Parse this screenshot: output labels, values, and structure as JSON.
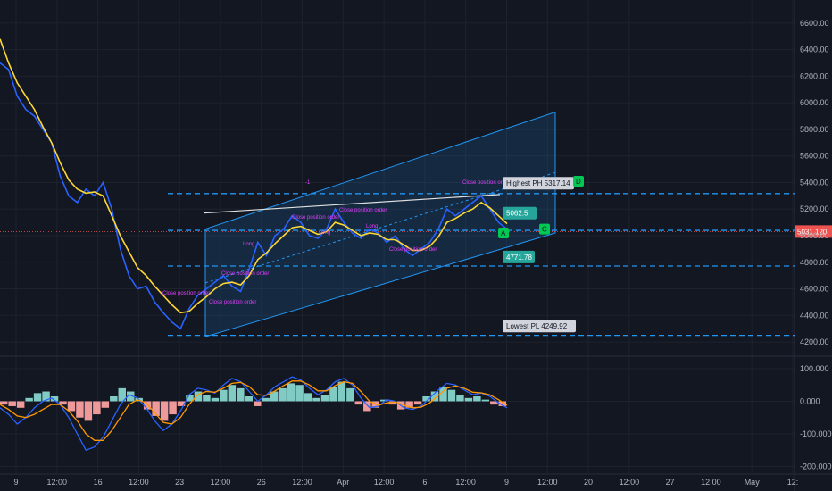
{
  "chart_data": [
    {
      "type": "line",
      "title": "",
      "y_ticks": [
        4200,
        4400,
        4600,
        4800,
        5000,
        5200,
        5400,
        5600,
        5800,
        6000,
        6200,
        6400,
        6600
      ],
      "y_tick_labels": [
        "4200.00",
        "4400.00",
        "4600.00",
        "4800.00",
        "5000.00",
        "5200.00",
        "5400.00",
        "5600.00",
        "5800.00",
        "6000.00",
        "6200.00",
        "6400.00",
        "6600.00"
      ],
      "x_tick_labels": [
        "9",
        "12:00",
        "16",
        "12:00",
        "23",
        "12:00",
        "26",
        "12:00",
        "Apr",
        "12:00",
        "6",
        "12:00",
        "9",
        "12:00",
        "20",
        "12:00",
        "27",
        "12:00",
        "May",
        "12:"
      ],
      "ylim": [
        4120,
        6720
      ],
      "last_price": "5031.120",
      "price_series": [
        6300,
        6250,
        6050,
        5950,
        5900,
        5800,
        5700,
        5450,
        5300,
        5250,
        5350,
        5300,
        5400,
        5200,
        4900,
        4700,
        4600,
        4620,
        4500,
        4420,
        4350,
        4300,
        4450,
        4550,
        4600,
        4650,
        4700,
        4620,
        4580,
        4750,
        4950,
        4850,
        5000,
        5050,
        5150,
        5100,
        5000,
        4980,
        5050,
        5200,
        5100,
        5020,
        4980,
        5050,
        5020,
        4950,
        5000,
        4900,
        4850,
        4900,
        4950,
        5050,
        5200,
        5150,
        5200,
        5250,
        5300,
        5200,
        5100,
        5050
      ],
      "ma_series": [
        6480,
        6300,
        6150,
        6050,
        5950,
        5820,
        5700,
        5550,
        5420,
        5350,
        5320,
        5330,
        5300,
        5150,
        5000,
        4880,
        4760,
        4700,
        4620,
        4550,
        4480,
        4420,
        4430,
        4490,
        4540,
        4600,
        4640,
        4650,
        4630,
        4700,
        4820,
        4870,
        4940,
        5000,
        5060,
        5070,
        5040,
        5010,
        5030,
        5100,
        5080,
        5040,
        5000,
        5020,
        5010,
        4970,
        4970,
        4930,
        4890,
        4890,
        4920,
        4990,
        5100,
        5130,
        5170,
        5200,
        5250,
        5210,
        5150,
        5090
      ],
      "lines": {
        "highest_ph": "Highest PH 5317.14",
        "lowest_pl": "Lowest PL 4249.92",
        "level_4771": "4771.78",
        "level_5062": "5062.5"
      },
      "levels": {
        "high": 5317.14,
        "low": 4249.92,
        "mid": 4771.78,
        "level2": 5062.5
      },
      "annotations": [
        "Close position order",
        "Close position order",
        "Close position order",
        "Close position order",
        "Close position order",
        "Close position order",
        "Close position order",
        "Long",
        "Long",
        "Long",
        "-1"
      ],
      "pattern_points": [
        "A",
        "C",
        "D"
      ],
      "channel": {
        "lower_start": 4240,
        "lower_end": 5020,
        "upper_start": 5050,
        "upper_end": 5930
      }
    },
    {
      "type": "bar",
      "title": "",
      "y_ticks": [
        100,
        0,
        -100,
        -200
      ],
      "y_tick_labels": [
        "100.000",
        "0.000",
        "-100.000",
        "-200.000"
      ],
      "ylim": [
        -215,
        130
      ],
      "histogram": [
        -10,
        -15,
        -20,
        10,
        25,
        30,
        15,
        -10,
        -30,
        -50,
        -60,
        -40,
        -20,
        15,
        40,
        30,
        10,
        -25,
        -45,
        -60,
        -40,
        -15,
        20,
        30,
        20,
        10,
        35,
        50,
        40,
        15,
        -15,
        10,
        30,
        40,
        55,
        50,
        25,
        10,
        20,
        45,
        60,
        40,
        -10,
        -30,
        -20,
        5,
        -10,
        -25,
        -20,
        -10,
        15,
        30,
        45,
        35,
        20,
        10,
        15,
        5,
        -10,
        -15
      ],
      "macd": [
        -20,
        -40,
        -70,
        -50,
        -20,
        0,
        10,
        -10,
        -50,
        -100,
        -150,
        -140,
        -110,
        -60,
        -10,
        20,
        10,
        -20,
        -60,
        -90,
        -70,
        -30,
        20,
        40,
        35,
        25,
        50,
        70,
        60,
        30,
        0,
        20,
        45,
        60,
        75,
        65,
        40,
        20,
        35,
        60,
        70,
        50,
        10,
        -20,
        -15,
        5,
        0,
        -20,
        -25,
        -15,
        10,
        35,
        55,
        50,
        35,
        20,
        25,
        15,
        -5,
        -20
      ],
      "signal": [
        -10,
        -25,
        -45,
        -50,
        -40,
        -25,
        -10,
        -10,
        -30,
        -60,
        -100,
        -120,
        -120,
        -90,
        -50,
        -10,
        5,
        -5,
        -35,
        -65,
        -70,
        -50,
        -10,
        20,
        30,
        28,
        40,
        55,
        58,
        45,
        20,
        18,
        32,
        48,
        62,
        62,
        50,
        32,
        32,
        48,
        60,
        55,
        30,
        0,
        -12,
        -5,
        -2,
        -12,
        -20,
        -18,
        -5,
        18,
        40,
        47,
        40,
        28,
        26,
        20,
        5,
        -12
      ]
    }
  ]
}
